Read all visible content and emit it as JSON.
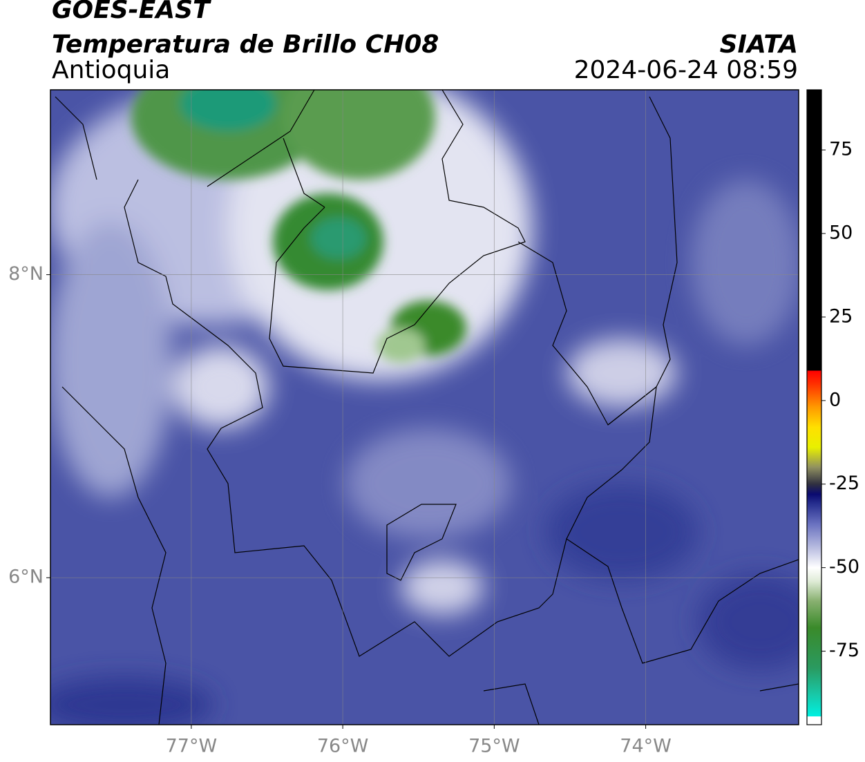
{
  "header": {
    "title": "GOES-EAST",
    "subtitle": "Temperatura de Brillo CH08",
    "region": "Antioquia",
    "source": "SIATA",
    "timestamp": "2024-06-24 08:59"
  },
  "map": {
    "xlim": [
      -77.93,
      -72.99
    ],
    "ylim": [
      5.03,
      9.22
    ],
    "xticks": [
      {
        "value": -77,
        "label": "77°W"
      },
      {
        "value": -76,
        "label": "76°W"
      },
      {
        "value": -75,
        "label": "75°W"
      },
      {
        "value": -74,
        "label": "74°W"
      }
    ],
    "yticks": [
      {
        "value": 8,
        "label": "8°N"
      },
      {
        "value": 6,
        "label": "6°N"
      }
    ],
    "grid": true
  },
  "colorbar": {
    "clim": [
      -97,
      93
    ],
    "ticks": [
      75,
      50,
      25,
      0,
      -25,
      -50,
      -75
    ],
    "stops": [
      {
        "value": -97,
        "color": "#ffffff"
      },
      {
        "value": -94.5,
        "color": "#ffffff"
      },
      {
        "value": -94.5,
        "color": "#00f0e0"
      },
      {
        "value": -88,
        "color": "#18c8a8"
      },
      {
        "value": -80,
        "color": "#2a9a60"
      },
      {
        "value": -68,
        "color": "#3a8a2a"
      },
      {
        "value": -60,
        "color": "#88b070"
      },
      {
        "value": -54,
        "color": "#e0ecd8"
      },
      {
        "value": -50,
        "color": "#ffffff"
      },
      {
        "value": -44,
        "color": "#b8bce0"
      },
      {
        "value": -37,
        "color": "#6a72c0"
      },
      {
        "value": -31,
        "color": "#283090"
      },
      {
        "value": -28,
        "color": "#0a0a70"
      },
      {
        "value": -25,
        "color": "#303040"
      },
      {
        "value": -20,
        "color": "#909060"
      },
      {
        "value": -14,
        "color": "#e8f000"
      },
      {
        "value": -8,
        "color": "#ffe000"
      },
      {
        "value": -2,
        "color": "#ff9a00"
      },
      {
        "value": 5,
        "color": "#ff3000"
      },
      {
        "value": 9,
        "color": "#ff0000"
      },
      {
        "value": 9,
        "color": "#000000"
      },
      {
        "value": 93,
        "color": "#000000"
      }
    ]
  }
}
